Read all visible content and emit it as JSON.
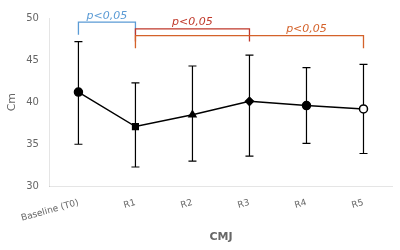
{
  "chart_data": {
    "type": "line",
    "xlabel": "CMJ",
    "ylabel": "Cm",
    "categories": [
      "Baseline (T0)",
      "R1",
      "R2",
      "R3",
      "R4",
      "R5"
    ],
    "values": [
      41.2,
      37.1,
      38.5,
      40.1,
      39.6,
      39.2
    ],
    "y_err_upper": [
      6.0,
      5.2,
      5.8,
      5.5,
      4.5,
      5.3
    ],
    "y_err_lower": [
      6.2,
      4.8,
      5.5,
      6.5,
      4.5,
      5.3
    ],
    "color": "black",
    "marker": [
      "circle",
      "square",
      "triangle",
      "diamond",
      "circle",
      "open-circle"
    ],
    "ylim": [
      30,
      50
    ],
    "yticks": [
      30,
      35,
      40,
      45,
      50
    ],
    "grid": false,
    "annotations": [
      {
        "type": "bracket",
        "x1": "Baseline (T0)",
        "x2": "R1",
        "y": 49.5,
        "y_drop": 1.5,
        "label": "p<0,05",
        "color": "#5b9bd5"
      },
      {
        "type": "bracket",
        "x1": "R1",
        "x2": "R3",
        "y": 48.7,
        "y_drop": 1.5,
        "label": "p<0,05",
        "color": "#c0392b"
      },
      {
        "type": "bracket",
        "x1": "R1",
        "x2": "R5",
        "y": 47.9,
        "y_drop": 1.5,
        "label": "p<0,05",
        "color": "#d4622a"
      }
    ]
  }
}
